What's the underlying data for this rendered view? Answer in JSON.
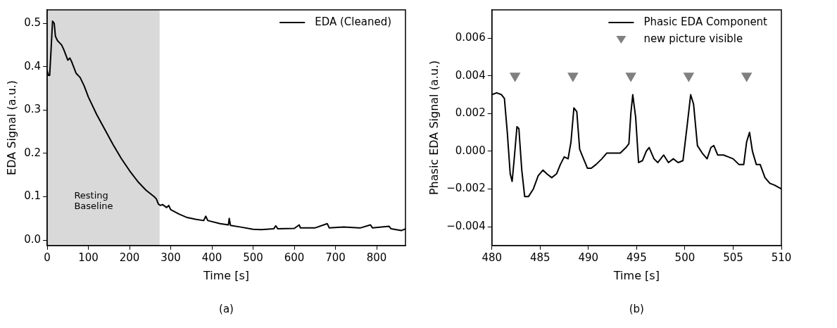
{
  "chart_data": [
    {
      "type": "line",
      "xlabel": "Time [s]",
      "ylabel": "EDA Signal (a.u.)",
      "xlim": [
        0,
        870
      ],
      "ylim": [
        -0.0125,
        0.531
      ],
      "xticks": [
        0,
        100,
        200,
        300,
        400,
        500,
        600,
        700,
        800
      ],
      "yticks": [
        {
          "value": 0,
          "label": "0.0"
        },
        0.1,
        0.2,
        0.3,
        0.4,
        0.5
      ],
      "grid": false,
      "legend": "top right",
      "marker": "none",
      "line_style": "solid",
      "x": [
        0,
        3,
        6,
        10,
        13,
        17,
        20,
        25,
        30,
        35,
        40,
        50,
        55,
        60,
        70,
        80,
        90,
        100,
        120,
        140,
        160,
        180,
        200,
        220,
        240,
        260,
        265,
        270,
        275,
        280,
        290,
        295,
        300,
        320,
        340,
        360,
        380,
        385,
        390,
        420,
        440,
        442,
        445,
        470,
        500,
        520,
        550,
        555,
        560,
        600,
        612,
        615,
        650,
        680,
        685,
        720,
        760,
        785,
        790,
        830,
        835,
        860,
        870
      ],
      "series": [
        {
          "name": "EDA (Cleaned)",
          "color": "#000000",
          "values": [
            0.39,
            0.38,
            0.38,
            0.45,
            0.505,
            0.5,
            0.47,
            0.46,
            0.455,
            0.45,
            0.44,
            0.415,
            0.42,
            0.41,
            0.385,
            0.375,
            0.355,
            0.33,
            0.29,
            0.255,
            0.22,
            0.188,
            0.16,
            0.135,
            0.115,
            0.1,
            0.095,
            0.083,
            0.08,
            0.082,
            0.075,
            0.08,
            0.07,
            0.06,
            0.052,
            0.048,
            0.045,
            0.055,
            0.045,
            0.038,
            0.035,
            0.05,
            0.034,
            0.03,
            0.025,
            0.024,
            0.026,
            0.033,
            0.026,
            0.027,
            0.035,
            0.028,
            0.028,
            0.038,
            0.028,
            0.03,
            0.028,
            0.035,
            0.028,
            0.032,
            0.026,
            0.022,
            0.026
          ]
        }
      ],
      "bands": [
        {
          "axis": "x",
          "from": 0,
          "to": 273,
          "label": "Resting\nBaseline",
          "color": "#d9d9d9"
        }
      ],
      "annotations": [
        "(a)"
      ]
    },
    {
      "type": "line",
      "xlabel": "Time [s]",
      "ylabel": "Phasic EDA Signal (a.u.)",
      "xlim": [
        480,
        510
      ],
      "ylim": [
        -0.005,
        0.0075
      ],
      "xticks": [
        480,
        485,
        490,
        495,
        500,
        505,
        510
      ],
      "yticks": [
        {
          "value": -0.004,
          "label": "−0.004"
        },
        {
          "value": -0.002,
          "label": "−0.002"
        },
        {
          "value": 0,
          "label": "0.000"
        },
        0.002,
        0.004,
        0.006
      ],
      "grid": false,
      "legend": "top right",
      "line_style": "solid",
      "series": [
        {
          "name": "Phasic EDA Component",
          "color": "#000000",
          "marker": "none",
          "x": [
            480,
            480.5,
            481,
            481.3,
            481.6,
            481.9,
            482.1,
            482.3,
            482.6,
            482.8,
            483.1,
            483.4,
            483.8,
            484.3,
            484.8,
            485.3,
            485.7,
            486.2,
            486.7,
            487.1,
            487.5,
            487.9,
            488.2,
            488.5,
            488.8,
            489.1,
            489.5,
            489.9,
            490.3,
            490.8,
            491.4,
            491.9,
            492.5,
            493.3,
            493.9,
            494.2,
            494.4,
            494.6,
            494.9,
            495.2,
            495.6,
            496,
            496.3,
            496.8,
            497.2,
            497.8,
            498.3,
            498.8,
            499.3,
            499.8,
            500.2,
            500.6,
            500.9,
            501.3,
            501.8,
            502.3,
            502.7,
            503,
            503.4,
            504,
            504.5,
            505,
            505.6,
            506.1,
            506.4,
            506.7,
            507,
            507.4,
            507.8,
            508.3,
            508.8,
            509.3,
            510
          ],
          "values": [
            0.003,
            0.0031,
            0.003,
            0.0028,
            0.001,
            -0.0012,
            -0.0016,
            -0.0005,
            0.0013,
            0.0012,
            -0.001,
            -0.0024,
            -0.0024,
            -0.002,
            -0.0013,
            -0.001,
            -0.0012,
            -0.0014,
            -0.0012,
            -0.0007,
            -0.0003,
            -0.0004,
            0.0005,
            0.0023,
            0.0021,
            0.0001,
            -0.0004,
            -0.0009,
            -0.0009,
            -0.0007,
            -0.0004,
            -0.0001,
            -0.0001,
            -0.0001,
            0.0002,
            0.0004,
            0.002,
            0.003,
            0.0018,
            -0.0006,
            -0.0005,
            0,
            0.0002,
            -0.0004,
            -0.0006,
            -0.0002,
            -0.0006,
            -0.0004,
            -0.0006,
            -0.0005,
            0.0012,
            0.003,
            0.0025,
            0.0003,
            -0.0001,
            -0.0004,
            0.0002,
            0.0003,
            -0.0002,
            -0.0002,
            -0.0003,
            -0.0004,
            -0.0007,
            -0.0007,
            0.0005,
            0.001,
            0,
            -0.0007,
            -0.0007,
            -0.0014,
            -0.0017,
            -0.0018,
            -0.002
          ]
        },
        {
          "name": "new picture visible",
          "type": "scatter",
          "color": "#808080",
          "marker": "triangle",
          "x": [
            482.4,
            488.4,
            494.4,
            500.4,
            506.4
          ],
          "values": [
            0.004,
            0.004,
            0.004,
            0.004,
            0.004
          ]
        }
      ],
      "annotations": [
        "(b)"
      ]
    }
  ]
}
